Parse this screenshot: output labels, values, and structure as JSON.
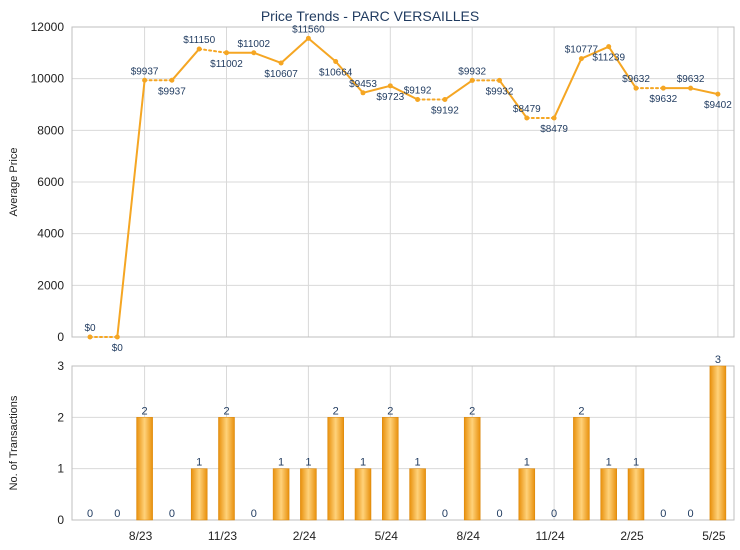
{
  "chart_data": [
    {
      "type": "line",
      "title": "Price Trends - PARC VERSAILLES",
      "ylabel": "Average Price",
      "ylim": [
        0,
        12000
      ],
      "yticks": [
        0,
        2000,
        4000,
        6000,
        8000,
        10000,
        12000
      ],
      "x_tick_labels": [
        "8/23",
        "11/23",
        "2/24",
        "5/24",
        "8/24",
        "11/24",
        "2/25",
        "5/25"
      ],
      "x_tick_month_index": [
        2,
        5,
        8,
        11,
        14,
        17,
        20,
        23
      ],
      "series": [
        {
          "color": "#f5a623",
          "values": [
            0,
            0,
            9937,
            9937,
            11150,
            11002,
            11002,
            10607,
            11560,
            10664,
            9453,
            9723,
            9192,
            9192,
            9932,
            9932,
            8479,
            8479,
            10777,
            11239,
            9632,
            9632,
            9632,
            9402
          ],
          "estimated": [
            false,
            true,
            false,
            true,
            false,
            true,
            false,
            false,
            false,
            false,
            false,
            false,
            false,
            true,
            false,
            true,
            false,
            true,
            false,
            false,
            false,
            true,
            false,
            false
          ],
          "labels": [
            "$0",
            "$0",
            "$9937",
            "$9937",
            "$11150",
            "$11002",
            "$11002",
            "$10607",
            "$11560",
            "$10664",
            "$9453",
            "$9723",
            "$9192",
            "$9192",
            "$9932",
            "$9932",
            "$8479",
            "$8479",
            "$10777",
            "$11239",
            "$9632",
            "$9632",
            "$9632",
            "$9402"
          ]
        }
      ]
    },
    {
      "type": "bar",
      "ylabel": "No. of Transactions",
      "ylim": [
        0,
        3
      ],
      "yticks": [
        0,
        1,
        2,
        3
      ],
      "x_tick_labels": [
        "8/23",
        "11/23",
        "2/24",
        "5/24",
        "8/24",
        "11/24",
        "2/25",
        "5/25"
      ],
      "bar_color": "#f5a623",
      "values": [
        0,
        0,
        2,
        0,
        1,
        2,
        0,
        1,
        1,
        2,
        1,
        2,
        1,
        0,
        2,
        0,
        1,
        0,
        2,
        1,
        1,
        0,
        0,
        3
      ]
    }
  ]
}
